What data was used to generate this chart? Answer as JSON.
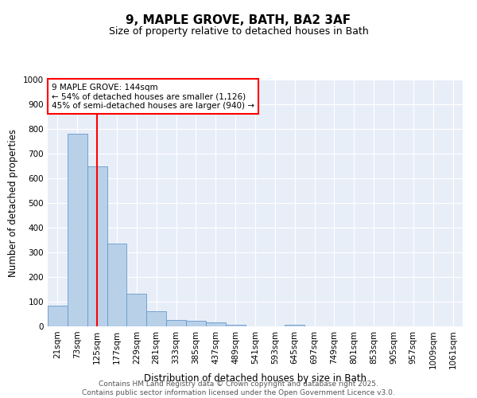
{
  "title": "9, MAPLE GROVE, BATH, BA2 3AF",
  "subtitle": "Size of property relative to detached houses in Bath",
  "xlabel": "Distribution of detached houses by size in Bath",
  "ylabel": "Number of detached properties",
  "bar_color": "#b8d0e8",
  "bar_edge_color": "#6699cc",
  "bg_color": "#e8eef8",
  "grid_color": "#ffffff",
  "categories": [
    "21sqm",
    "73sqm",
    "125sqm",
    "177sqm",
    "229sqm",
    "281sqm",
    "333sqm",
    "385sqm",
    "437sqm",
    "489sqm",
    "541sqm",
    "593sqm",
    "645sqm",
    "697sqm",
    "749sqm",
    "801sqm",
    "853sqm",
    "905sqm",
    "957sqm",
    "1009sqm",
    "1061sqm"
  ],
  "values": [
    85,
    780,
    648,
    335,
    133,
    62,
    25,
    23,
    17,
    8,
    0,
    0,
    8,
    0,
    0,
    0,
    0,
    0,
    0,
    0,
    0
  ],
  "red_line_x": 2,
  "annotation_line1": "9 MAPLE GROVE: 144sqm",
  "annotation_line2": "← 54% of detached houses are smaller (1,126)",
  "annotation_line3": "45% of semi-detached houses are larger (940) →",
  "ylim": [
    0,
    1000
  ],
  "yticks": [
    0,
    100,
    200,
    300,
    400,
    500,
    600,
    700,
    800,
    900,
    1000
  ],
  "footer_text": "Contains HM Land Registry data © Crown copyright and database right 2025.\nContains public sector information licensed under the Open Government Licence v3.0.",
  "title_fontsize": 11,
  "subtitle_fontsize": 9,
  "label_fontsize": 8.5,
  "tick_fontsize": 7.5,
  "annotation_fontsize": 7.5,
  "footer_fontsize": 6.5
}
